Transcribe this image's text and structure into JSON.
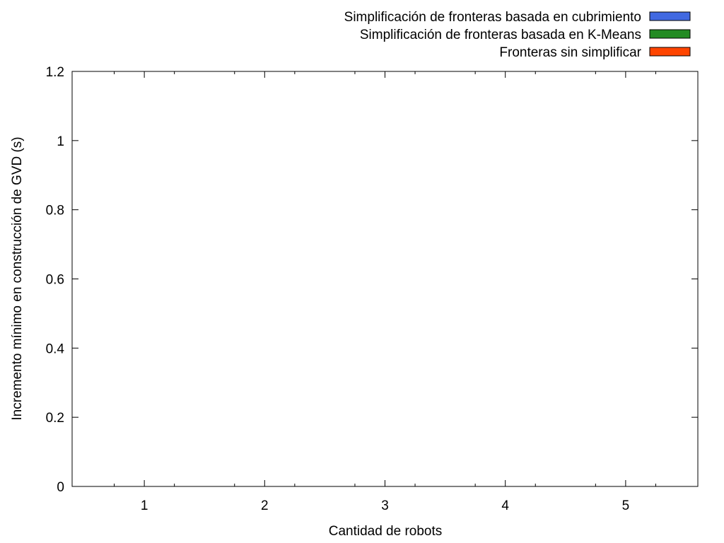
{
  "chart_data": {
    "type": "bar",
    "title": "",
    "xlabel": "Cantidad de robots",
    "ylabel": "Incremento mínimo en construcción de GVD (s)",
    "categories": [
      "1",
      "2",
      "3",
      "4",
      "5"
    ],
    "xlim": [
      0.4,
      5.6
    ],
    "ylim": [
      0,
      1.2
    ],
    "yticks": [
      "0",
      "0.2",
      "0.4",
      "0.6",
      "0.8",
      "1",
      "1.2"
    ],
    "grid": false,
    "legend_position": "top-right",
    "series": [
      {
        "name": "Simplificación de fronteras basada en cubrimiento",
        "color": "#4169e1",
        "values": [
          0,
          0,
          0,
          0,
          0
        ]
      },
      {
        "name": "Simplificación de fronteras basada en K-Means",
        "color": "#228b22",
        "values": [
          0,
          0,
          0,
          0,
          0
        ]
      },
      {
        "name": "Fronteras sin simplificar",
        "color": "#ff4500",
        "values": [
          0,
          0,
          0,
          0,
          0
        ]
      }
    ]
  }
}
